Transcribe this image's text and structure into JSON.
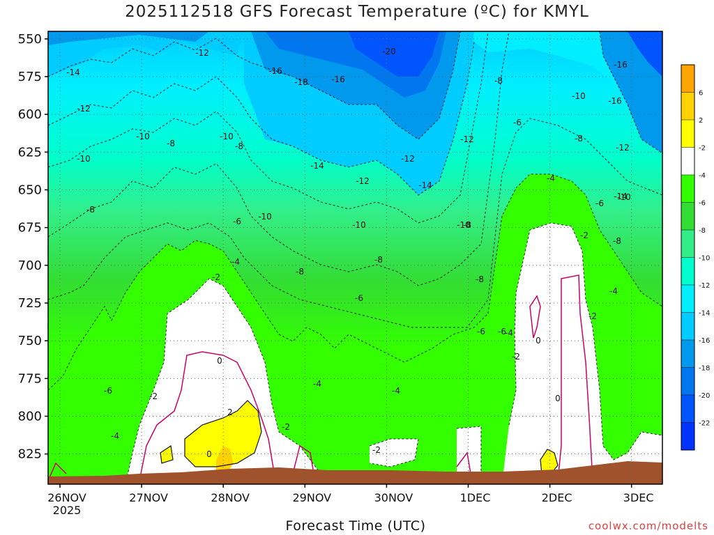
{
  "title": "2025112518 GFS Forecast Temperature (ºC) for KMYL",
  "credit": "coolwx.com/modelts",
  "chart_data": {
    "type": "heatmap",
    "title": "2025112518 GFS Forecast Temperature (ºC) for KMYL",
    "xlabel": "Forecast Time (UTC)",
    "ylabel": "",
    "x_ticks": [
      "26NOV",
      "27NOV",
      "28NOV",
      "29NOV",
      "30NOV",
      "1DEC",
      "2DEC",
      "3DEC"
    ],
    "x_year_label": "2025",
    "y_ticks": [
      550,
      575,
      600,
      625,
      650,
      675,
      700,
      725,
      750,
      775,
      800,
      825
    ],
    "ylim": [
      845,
      545
    ],
    "grid": true,
    "colorbar": {
      "labels": [
        "6",
        "2",
        "-2",
        "-4",
        "-6",
        "-8",
        "-10",
        "-12",
        "-14",
        "-16",
        "-18",
        "-20",
        "-22"
      ],
      "colors": [
        "#ffa500",
        "#ffd200",
        "#ffff00",
        "#ffffff",
        "#33ff00",
        "#33dd33",
        "#33ee88",
        "#00ffcc",
        "#00eeff",
        "#00ccff",
        "#0099ee",
        "#0077ee",
        "#0055ff",
        "#0033ff"
      ]
    },
    "ground_color": "#a0522d",
    "contour_labels": [
      {
        "value": "-14"
      },
      {
        "value": "-12"
      },
      {
        "value": "-16"
      },
      {
        "value": "-18"
      },
      {
        "value": "-16"
      },
      {
        "value": "-20"
      },
      {
        "value": "-16"
      },
      {
        "value": "-8"
      },
      {
        "value": "-10"
      },
      {
        "value": "-14"
      },
      {
        "value": "-12"
      },
      {
        "value": "-10"
      },
      {
        "value": "-8"
      },
      {
        "value": "-10"
      },
      {
        "value": "-8"
      },
      {
        "value": "-12"
      },
      {
        "value": "-6"
      },
      {
        "value": "-8"
      },
      {
        "value": "-12"
      },
      {
        "value": "-10"
      },
      {
        "value": "-12"
      },
      {
        "value": "-14"
      },
      {
        "value": "-12"
      },
      {
        "value": "-16"
      },
      {
        "value": "-14"
      },
      {
        "value": "-8"
      },
      {
        "value": "-6"
      },
      {
        "value": "-10"
      },
      {
        "value": "-10"
      },
      {
        "value": "-4"
      },
      {
        "value": "-6"
      },
      {
        "value": "-8"
      },
      {
        "value": "-2"
      },
      {
        "value": "-8"
      },
      {
        "value": "-8"
      },
      {
        "value": "-2"
      },
      {
        "value": "-10"
      },
      {
        "value": "-8"
      },
      {
        "value": "-6"
      },
      {
        "value": "-4"
      },
      {
        "value": "-6"
      },
      {
        "value": "-4"
      },
      {
        "value": "-4"
      },
      {
        "value": "0"
      },
      {
        "value": "0"
      },
      {
        "value": "-2"
      },
      {
        "value": "0"
      },
      {
        "value": "-6"
      },
      {
        "value": "-2"
      },
      {
        "value": "-4"
      },
      {
        "value": "-4"
      },
      {
        "value": "-2"
      },
      {
        "value": "-4"
      },
      {
        "value": "-2"
      },
      {
        "value": "-2"
      },
      {
        "value": "2"
      },
      {
        "value": "0"
      },
      {
        "value": "-6"
      },
      {
        "value": "-8"
      },
      {
        "value": "-10"
      }
    ]
  }
}
